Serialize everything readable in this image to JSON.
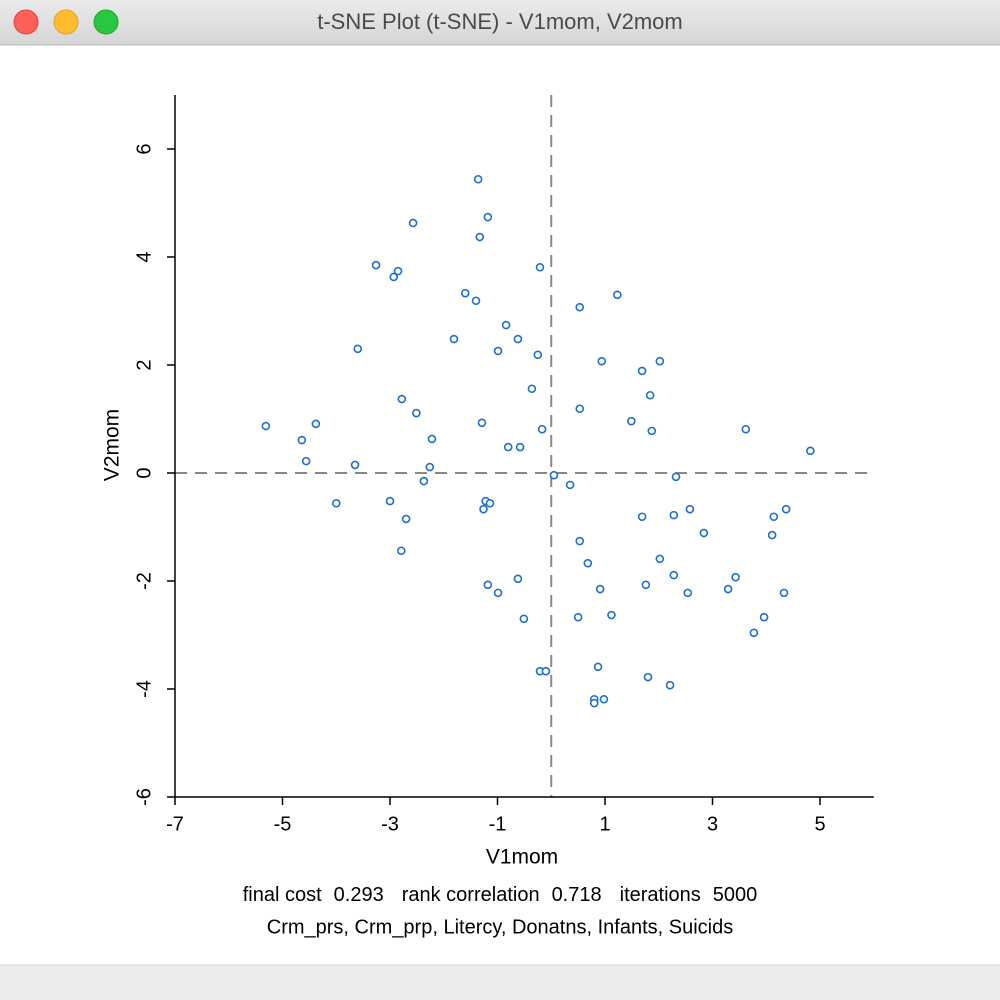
{
  "window": {
    "title": "t-SNE Plot (t-SNE) - V1mom, V2mom"
  },
  "chart_data": {
    "type": "scatter",
    "x_label": "V1mom",
    "y_label": "V2mom",
    "color": "#1a6fd4",
    "xlim": [
      -7,
      6
    ],
    "ylim": [
      -6,
      7
    ],
    "xticks": [
      -7,
      -5,
      -3,
      -1,
      1,
      3,
      5
    ],
    "yticks": [
      -6,
      -4,
      -2,
      0,
      2,
      4,
      6
    ],
    "reference_lines": {
      "x": 0,
      "y": 0
    },
    "x": [
      -5.31,
      -4.64,
      -4.38,
      -4.56,
      -4.0,
      -3.65,
      -3.6,
      -3.26,
      -2.93,
      -2.85,
      -3.0,
      -2.78,
      -2.7,
      -2.79,
      -2.57,
      -2.51,
      -2.37,
      -2.26,
      -2.22,
      -1.81,
      -1.6,
      -1.4,
      -1.36,
      -1.33,
      -1.18,
      -1.29,
      -1.22,
      -1.14,
      -1.26,
      -1.18,
      -0.99,
      -0.99,
      -0.84,
      -0.8,
      -0.62,
      -0.58,
      -0.62,
      -0.51,
      -0.36,
      -0.25,
      -0.21,
      -0.17,
      -0.21,
      -0.1,
      0.05,
      0.35,
      0.53,
      0.53,
      0.53,
      0.5,
      0.68,
      0.87,
      0.8,
      0.8,
      0.98,
      0.91,
      0.94,
      1.12,
      1.23,
      1.49,
      1.69,
      1.69,
      1.76,
      1.8,
      1.84,
      1.87,
      2.02,
      2.02,
      2.21,
      2.28,
      2.28,
      2.32,
      2.54,
      2.58,
      2.84,
      3.29,
      3.43,
      3.62,
      3.77,
      3.96,
      4.11,
      4.14,
      4.33,
      4.37,
      4.82
    ],
    "values": [
      0.87,
      0.61,
      0.91,
      0.22,
      -0.56,
      0.15,
      2.3,
      3.85,
      3.63,
      3.74,
      -0.52,
      1.37,
      -0.85,
      -1.44,
      4.63,
      1.11,
      -0.15,
      0.11,
      0.63,
      2.48,
      3.33,
      3.19,
      5.44,
      4.37,
      4.74,
      0.93,
      -0.52,
      -0.56,
      -0.67,
      -2.07,
      -2.22,
      2.26,
      2.74,
      0.48,
      2.48,
      0.48,
      -1.96,
      -2.7,
      1.56,
      2.19,
      3.81,
      0.81,
      -3.67,
      -3.67,
      -0.04,
      -0.22,
      3.07,
      1.19,
      -1.26,
      -2.67,
      -1.67,
      -3.59,
      -4.19,
      -4.26,
      -4.19,
      -2.15,
      2.07,
      -2.63,
      3.3,
      0.96,
      1.89,
      -0.81,
      -2.07,
      -3.78,
      1.44,
      0.78,
      2.07,
      -1.59,
      -3.93,
      -1.89,
      -0.78,
      -0.07,
      -2.22,
      -0.67,
      -1.11,
      -2.15,
      -1.93,
      0.81,
      -2.96,
      -2.67,
      -1.15,
      -0.81,
      -2.22,
      -0.67,
      0.41
    ]
  },
  "footer": {
    "stats": [
      {
        "label": "final cost",
        "value": "0.293"
      },
      {
        "label": "rank correlation",
        "value": "0.718"
      },
      {
        "label": "iterations",
        "value": "5000"
      }
    ],
    "variables": "Crm_prs, Crm_prp, Litercy, Donatns, Infants, Suicids"
  }
}
